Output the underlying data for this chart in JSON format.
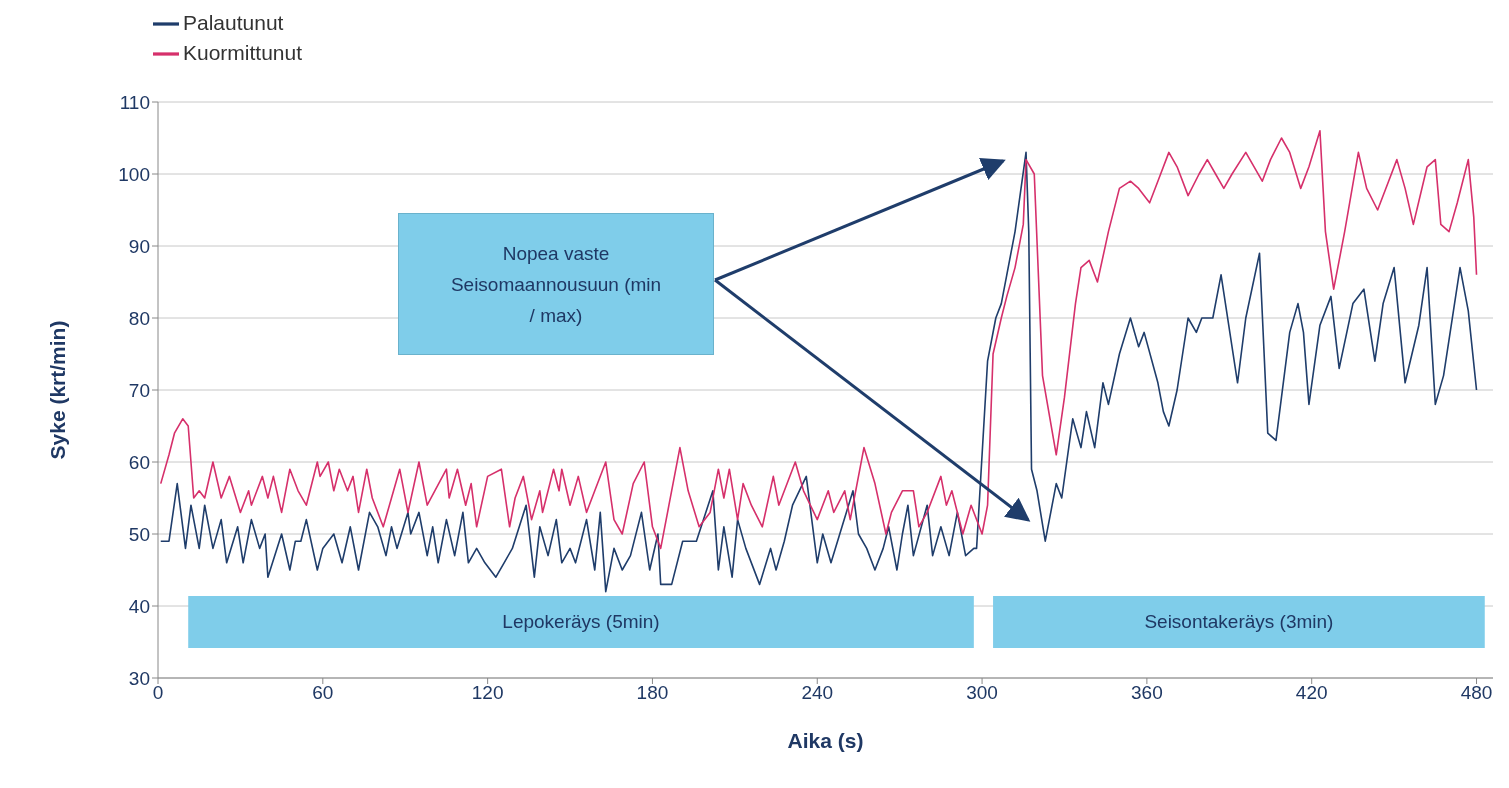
{
  "chart_data": {
    "type": "line",
    "xlabel": "Aika (s)",
    "ylabel": "Syke (krt/min)",
    "xlim": [
      0,
      486
    ],
    "xticks": [
      0,
      60,
      120,
      180,
      240,
      300,
      360,
      420,
      480
    ],
    "ylim": [
      30,
      110
    ],
    "yticks": [
      30,
      40,
      50,
      60,
      70,
      80,
      90,
      100,
      110
    ],
    "grid": "y",
    "legend": "top left",
    "marker": "none",
    "line_style": "solid",
    "annotations": [
      "Nopea vaste Seisomaannousuun (min / max)"
    ],
    "bands": [
      {
        "axis": "x",
        "from": 11,
        "to": 297,
        "label": "Lepokeräys (5min)",
        "color": "#7fcdea"
      },
      {
        "axis": "x",
        "from": 304,
        "to": 483,
        "label": "Seisontakeräys (3min)",
        "color": "#7fcdea"
      }
    ],
    "series": [
      {
        "name": "Palautunut",
        "color": "#1f3d6b",
        "x": [
          1,
          4,
          7,
          10,
          12,
          15,
          17,
          20,
          23,
          25,
          29,
          31,
          34,
          37,
          39,
          40,
          45,
          48,
          50,
          52,
          54,
          58,
          60,
          64,
          67,
          70,
          73,
          77,
          80,
          83,
          85,
          87,
          91,
          92,
          95,
          98,
          100,
          102,
          105,
          108,
          111,
          113,
          116,
          119,
          123,
          126,
          129,
          134,
          137,
          139,
          142,
          145,
          147,
          150,
          152,
          156,
          159,
          161,
          163,
          166,
          169,
          172,
          176,
          179,
          182,
          183,
          187,
          191,
          196,
          202,
          204,
          206,
          209,
          211,
          214,
          219,
          223,
          225,
          228,
          231,
          236,
          240,
          242,
          245,
          249,
          253,
          255,
          258,
          261,
          264,
          266,
          269,
          271,
          273,
          275,
          280,
          282,
          285,
          288,
          291,
          294,
          297,
          298,
          302,
          305,
          307,
          309,
          312,
          316,
          317,
          318,
          320,
          323,
          327,
          329,
          333,
          336,
          338,
          341,
          344,
          346,
          350,
          354,
          357,
          359,
          364,
          366,
          368,
          371,
          375,
          378,
          380,
          384,
          387,
          393,
          396,
          401,
          404,
          407,
          412,
          415,
          417,
          419,
          423,
          427,
          430,
          435,
          439,
          443,
          446,
          450,
          454,
          459,
          462,
          465,
          468,
          474,
          477,
          480
        ],
        "values": [
          49,
          49,
          57,
          48,
          54,
          48,
          54,
          48,
          52,
          46,
          51,
          46,
          52,
          48,
          50,
          44,
          50,
          45,
          49,
          49,
          52,
          45,
          48,
          50,
          46,
          51,
          45,
          53,
          51,
          47,
          51,
          48,
          53,
          50,
          53,
          47,
          51,
          46,
          52,
          47,
          53,
          46,
          48,
          46,
          44,
          46,
          48,
          54,
          44,
          51,
          47,
          52,
          46,
          48,
          46,
          52,
          45,
          53,
          42,
          48,
          45,
          47,
          53,
          45,
          50,
          43,
          43,
          49,
          49,
          56,
          45,
          51,
          44,
          52,
          48,
          43,
          48,
          45,
          49,
          54,
          58,
          46,
          50,
          46,
          51,
          56,
          50,
          48,
          45,
          48,
          51,
          45,
          50,
          54,
          47,
          54,
          47,
          51,
          47,
          53,
          47,
          48,
          48,
          74,
          80,
          82,
          86,
          92,
          103,
          92,
          59,
          56,
          49,
          57,
          55,
          66,
          62,
          67,
          62,
          71,
          68,
          75,
          80,
          76,
          78,
          71,
          67,
          65,
          70,
          80,
          78,
          80,
          80,
          86,
          71,
          80,
          89,
          64,
          63,
          78,
          82,
          78,
          68,
          79,
          83,
          73,
          82,
          84,
          74,
          82,
          87,
          71,
          79,
          87,
          68,
          72,
          87,
          81,
          70
        ]
      },
      {
        "name": "Kuormittunut",
        "color": "#d6306b",
        "x": [
          1,
          4,
          6,
          9,
          11,
          13,
          15,
          17,
          20,
          23,
          26,
          30,
          33,
          34,
          38,
          40,
          42,
          45,
          48,
          51,
          54,
          58,
          59,
          62,
          64,
          66,
          69,
          71,
          73,
          76,
          78,
          82,
          85,
          88,
          91,
          95,
          98,
          105,
          106,
          109,
          112,
          114,
          116,
          120,
          125,
          128,
          130,
          133,
          136,
          139,
          140,
          144,
          146,
          147,
          150,
          153,
          156,
          159,
          163,
          166,
          169,
          173,
          177,
          180,
          183,
          186,
          190,
          193,
          197,
          201,
          204,
          206,
          208,
          211,
          213,
          216,
          220,
          224,
          226,
          232,
          235,
          240,
          244,
          246,
          250,
          252,
          257,
          261,
          265,
          267,
          271,
          275,
          277,
          280,
          285,
          287,
          289,
          293,
          296,
          299,
          300,
          302,
          304,
          307,
          309,
          312,
          315,
          316,
          319,
          322,
          327,
          330,
          334,
          336,
          339,
          342,
          346,
          350,
          354,
          357,
          361,
          364,
          368,
          371,
          375,
          379,
          382,
          385,
          388,
          391,
          396,
          402,
          405,
          409,
          412,
          416,
          419,
          423,
          425,
          428,
          432,
          437,
          440,
          444,
          448,
          451,
          454,
          457,
          462,
          465,
          467,
          470,
          473,
          477,
          479,
          480
        ],
        "values": [
          57,
          61,
          64,
          66,
          65,
          55,
          56,
          55,
          60,
          55,
          58,
          53,
          56,
          54,
          58,
          55,
          58,
          53,
          59,
          56,
          54,
          60,
          58,
          60,
          56,
          59,
          56,
          58,
          53,
          59,
          55,
          51,
          55,
          59,
          53,
          60,
          54,
          59,
          55,
          59,
          54,
          57,
          51,
          58,
          59,
          51,
          55,
          58,
          52,
          56,
          53,
          59,
          56,
          59,
          54,
          58,
          53,
          56,
          60,
          52,
          50,
          57,
          60,
          51,
          48,
          54,
          62,
          56,
          51,
          53,
          59,
          55,
          59,
          52,
          57,
          54,
          51,
          58,
          54,
          60,
          56,
          52,
          56,
          53,
          56,
          52,
          62,
          57,
          50,
          53,
          56,
          56,
          51,
          53,
          58,
          54,
          56,
          50,
          54,
          51,
          50,
          54,
          75,
          80,
          83,
          87,
          93,
          102,
          100,
          72,
          61,
          69,
          82,
          87,
          88,
          85,
          92,
          98,
          99,
          98,
          96,
          99,
          103,
          101,
          97,
          100,
          102,
          100,
          98,
          100,
          103,
          99,
          102,
          105,
          103,
          98,
          101,
          106,
          92,
          84,
          92,
          103,
          98,
          95,
          99,
          102,
          98,
          93,
          101,
          102,
          93,
          92,
          96,
          102,
          94,
          86
        ]
      }
    ]
  }
}
